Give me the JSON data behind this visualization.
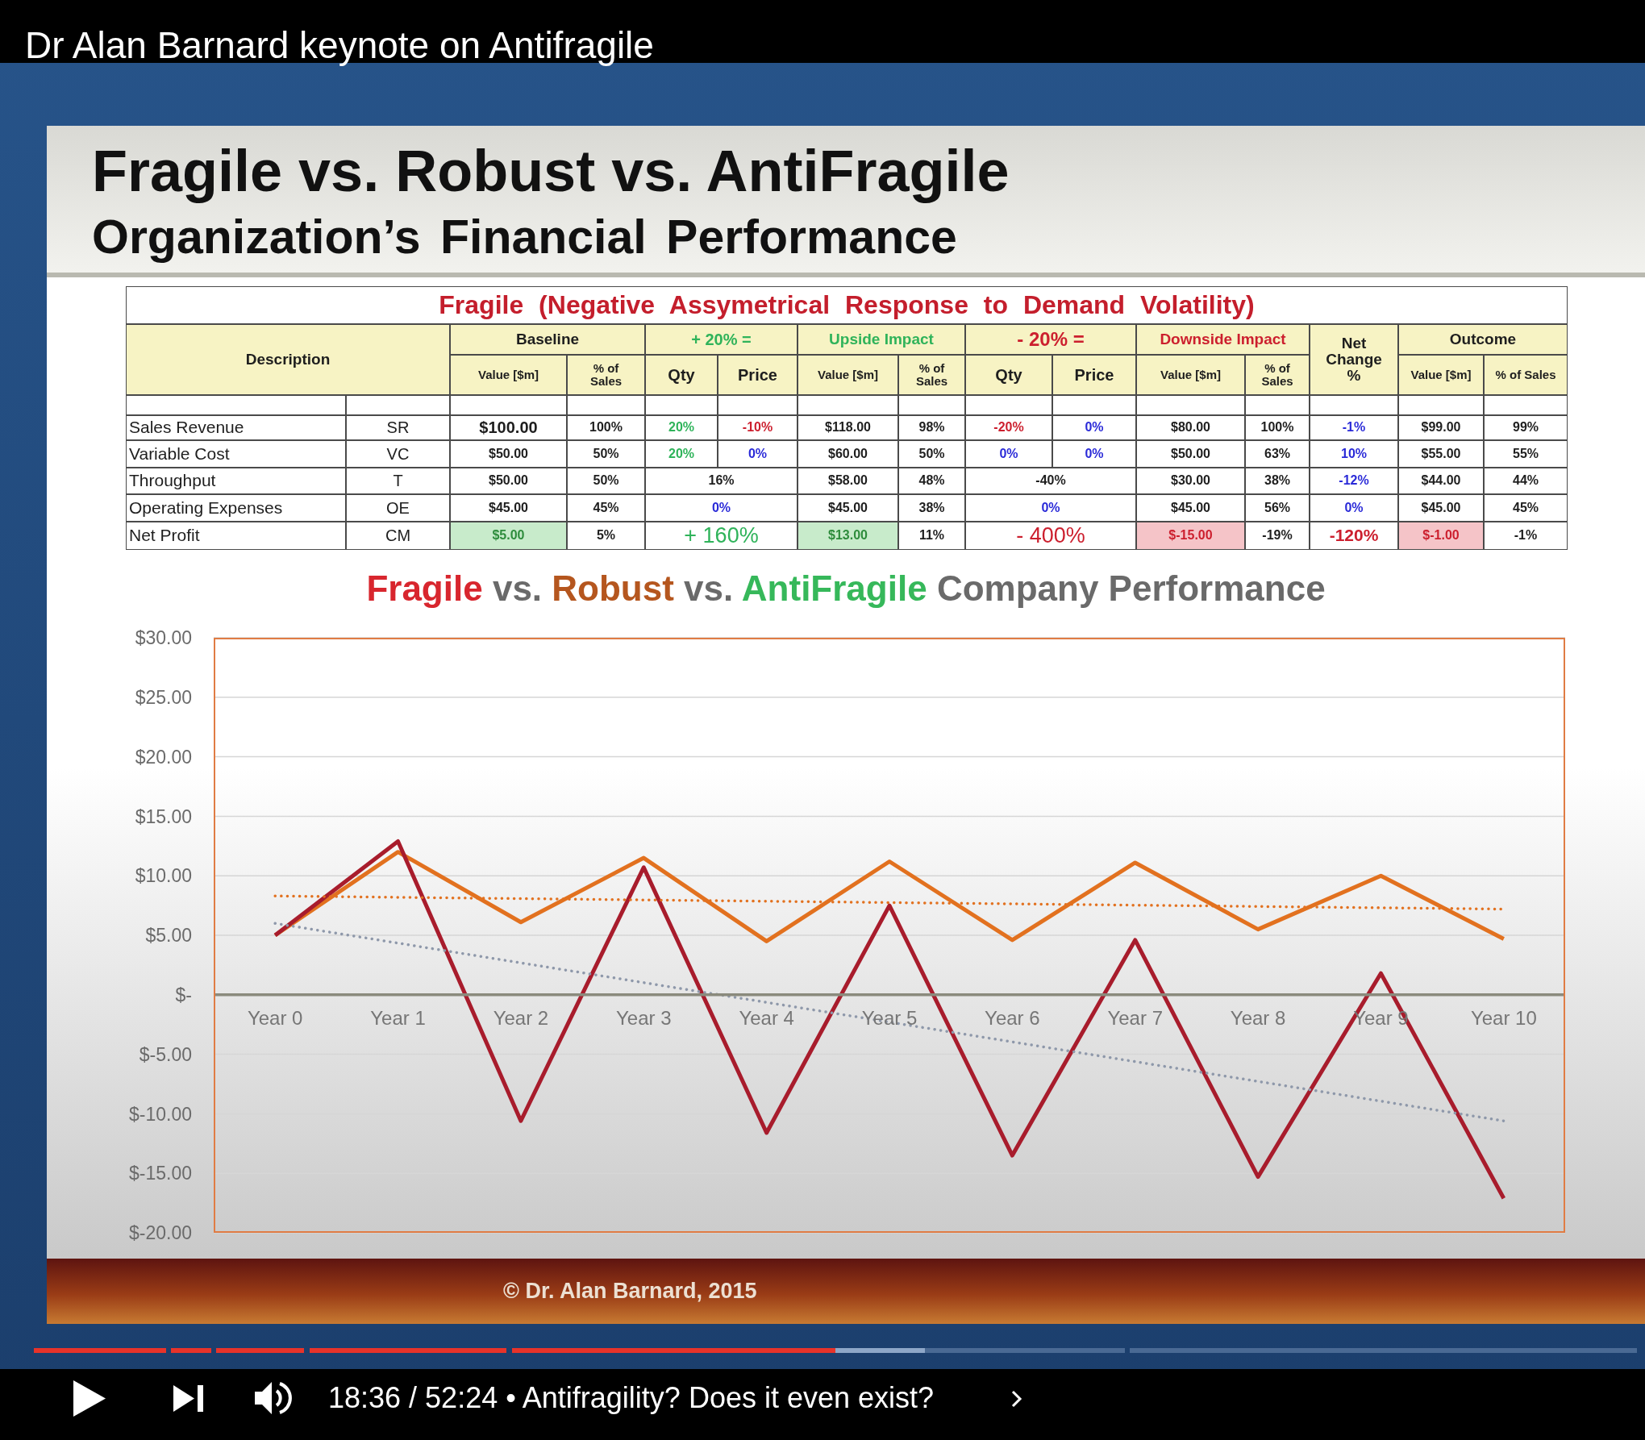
{
  "chart_data": [
    {
      "type": "other",
      "title": "Fragile vs. Robust vs. AntiFragile",
      "subtitle": "Organization’s Financial Performance",
      "annotations": [
        "Dr Alan Barnard keynote on Antifragile",
        "© Dr. Alan Barnard, 2015",
        "18:36 / 52:24 • Antifragility? Does it even exist?"
      ]
    },
    {
      "type": "other",
      "title": "Fragile (Negative Assymetrical Response to Demand Volatility)",
      "cell_labels": [
        [
          "Description",
          null,
          "Baseline",
          null,
          "+ 20% =",
          null,
          "Upside Impact",
          null,
          "- 20% =",
          null,
          "Downside Impact",
          null,
          "Net Change %",
          "Outcome",
          null
        ],
        [
          null,
          null,
          "Value [$m]",
          "% of Sales",
          "Qty",
          "Price",
          "Value [$m]",
          "% of Sales",
          "Qty",
          "Price",
          "Value [$m]",
          "% of Sales",
          null,
          "Value [$m]",
          "% of Sales"
        ],
        [
          null,
          null,
          null,
          null,
          null,
          null,
          null,
          null,
          null,
          null,
          null,
          null,
          null,
          null,
          null
        ],
        [
          "Sales Revenue",
          "SR",
          "$100.00",
          "100%",
          "20%",
          "-10%",
          "$118.00",
          "98%",
          "-20%",
          "0%",
          "$80.00",
          "100%",
          "-1%",
          "$99.00",
          "99%"
        ],
        [
          "Variable Cost",
          "VC",
          "$50.00",
          "50%",
          "20%",
          "0%",
          "$60.00",
          "50%",
          "0%",
          "0%",
          "$50.00",
          "63%",
          "10%",
          "$55.00",
          "55%"
        ],
        [
          "Throughput",
          "T",
          "$50.00",
          "50%",
          "16%",
          null,
          "$58.00",
          "48%",
          "-40%",
          null,
          "$30.00",
          "38%",
          "-12%",
          "$44.00",
          "44%"
        ],
        [
          "Operating Expenses",
          "OE",
          "$45.00",
          "45%",
          "0%",
          null,
          "$45.00",
          "38%",
          "0%",
          null,
          "$45.00",
          "56%",
          "0%",
          "$45.00",
          "45%"
        ],
        [
          "Net Profit",
          "CM",
          "$5.00",
          "5%",
          "+ 160%",
          null,
          "$13.00",
          "11%",
          "- 400%",
          null,
          "$-15.00",
          "-19%",
          "-120%",
          "$-1.00",
          "-1%"
        ]
      ]
    },
    {
      "type": "line",
      "title": "Fragile vs. Robust vs. AntiFragile Company Performance",
      "categories": [
        "Year 0",
        "Year 1",
        "Year 2",
        "Year 3",
        "Year 4",
        "Year 5",
        "Year 6",
        "Year 7",
        "Year 8",
        "Year 9",
        "Year 10"
      ],
      "ylim": [
        -20,
        30
      ],
      "yticks": [
        {
          "value": -20,
          "label": "$-20.00"
        },
        {
          "value": -15,
          "label": "$-15.00"
        },
        {
          "value": -10,
          "label": "$-10.00"
        },
        {
          "value": -5,
          "label": "$-5.00"
        },
        {
          "value": 0,
          "label": "$-"
        },
        {
          "value": 5,
          "label": "$5.00"
        },
        {
          "value": 10,
          "label": "$10.00"
        },
        {
          "value": 15,
          "label": "$15.00"
        },
        {
          "value": 20,
          "label": "$20.00"
        },
        {
          "value": 25,
          "label": "$25.00"
        },
        {
          "value": 30,
          "label": "$30.00"
        }
      ],
      "grid": "y",
      "marker": "none",
      "line_style": "solid",
      "series": [
        {
          "color": "#e2711f",
          "values": [
            5.0,
            12.0,
            6.1,
            11.5,
            4.5,
            11.2,
            4.6,
            11.1,
            5.5,
            10.0,
            4.7
          ]
        },
        {
          "color": "#a81c2c",
          "values": [
            5.0,
            12.9,
            -10.6,
            10.7,
            -11.6,
            7.5,
            -13.5,
            4.6,
            -15.3,
            1.8,
            -17.1
          ]
        },
        {
          "color": "#e2711f",
          "x": [
            "Year 0",
            "Year 10"
          ],
          "values": [
            8.3,
            7.2
          ],
          "line_style": "dotted"
        },
        {
          "color": "#8e98aa",
          "x": [
            "Year 0",
            "Year 10"
          ],
          "values": [
            6.0,
            -10.6
          ],
          "line_style": "dotted"
        }
      ]
    }
  ]
}
